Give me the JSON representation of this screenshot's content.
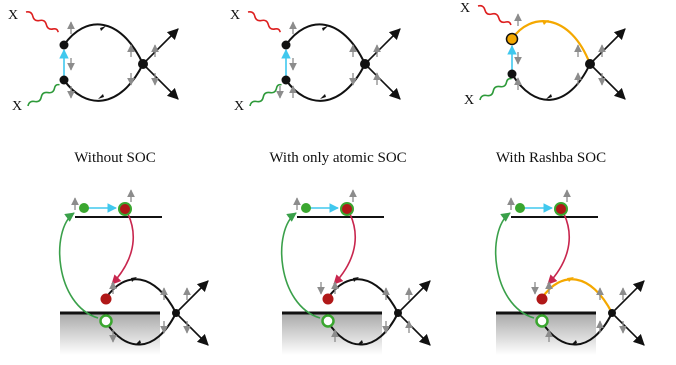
{
  "captions": {
    "without": "Without SOC",
    "atomic": "With only atomic SOC",
    "rashba": "With Rashba SOC"
  },
  "xlabel": "X",
  "colors": {
    "photon_top": "#dd1f1f",
    "photon_bottom": "#2e9a3a",
    "transfer": "#40c8ee",
    "rashba": "#f4a800",
    "green_arc": "#3aa04a",
    "pink_arc": "#c8264e",
    "electron": "#b01818",
    "dot_green": "#3aa62f",
    "spin": "#8c8c8c"
  },
  "icons": [
    "wavy-photon",
    "spin-arrow",
    "scattering-vertex",
    "band-edge",
    "hole-circle"
  ]
}
